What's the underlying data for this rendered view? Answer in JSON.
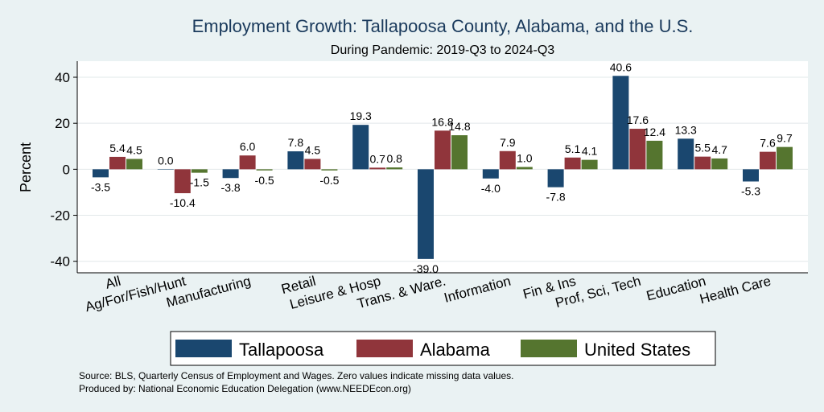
{
  "chart_data": {
    "type": "bar",
    "title": "Employment Growth: Tallapoosa County, Alabama, and the U.S.",
    "subtitle": "During Pandemic: 2019-Q3 to 2024-Q3",
    "ylabel": "Percent",
    "xlabel": "",
    "ylim": [
      -45,
      47
    ],
    "yticks": [
      -40,
      -20,
      0,
      20,
      40
    ],
    "grid": true,
    "legend_position": "bottom",
    "categories": [
      "All",
      "Ag/For/Fish/Hunt",
      "Manufacturing",
      "Retail",
      "Leisure & Hosp",
      "Trans. & Ware.",
      "Information",
      "Fin & Ins",
      "Prof, Sci, Tech",
      "Education",
      "Health Care"
    ],
    "series": [
      {
        "name": "Tallapoosa",
        "color": "#1a476f",
        "values": [
          -3.5,
          0.0,
          -3.8,
          7.8,
          19.3,
          -39.0,
          -4.0,
          -7.8,
          40.6,
          13.3,
          -5.3
        ]
      },
      {
        "name": "Alabama",
        "color": "#90353b",
        "values": [
          5.4,
          -10.4,
          6.0,
          4.5,
          0.7,
          16.8,
          7.9,
          5.1,
          17.6,
          5.5,
          7.6
        ]
      },
      {
        "name": "United States",
        "color": "#55752f",
        "values": [
          4.5,
          -1.5,
          -0.5,
          -0.5,
          0.8,
          14.8,
          1.0,
          4.1,
          12.4,
          4.7,
          9.7
        ]
      }
    ],
    "data_labels": [
      [
        "-3.5",
        "0.0",
        "-3.8",
        "7.8",
        "19.3",
        "-39.0",
        "-4.0",
        "-7.8",
        "40.6",
        "13.3",
        "-5.3"
      ],
      [
        "5.4",
        "-10.4",
        "6.0",
        "4.5",
        "0.7",
        "16.8",
        "7.9",
        "5.1",
        "17.6",
        "5.5",
        "7.6"
      ],
      [
        "4.5",
        "-1.5",
        "-0.5",
        "-0.5",
        "0.8",
        "14.8",
        "1.0",
        "4.1",
        "12.4",
        "4.7",
        "9.7"
      ]
    ],
    "source_note": "Source: BLS, Quarterly Census of Employment and Wages. Zero values indicate missing data values.",
    "produced_note": "Produced by: National Economic Education Delegation (www.NEEDEcon.org)"
  }
}
